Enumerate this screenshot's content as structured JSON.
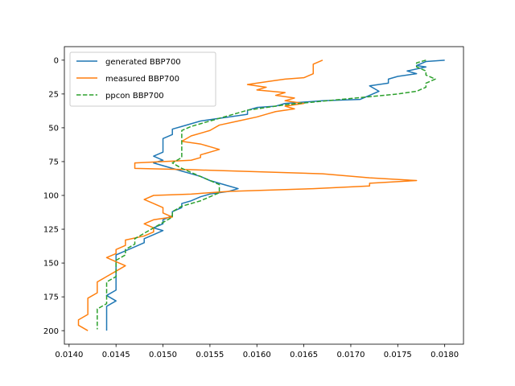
{
  "chart_data": {
    "type": "line",
    "title": "",
    "xlabel": "",
    "ylabel": "",
    "xlim": [
      0.01395,
      0.0182
    ],
    "ylim": [
      210,
      -10
    ],
    "y_inverted": true,
    "grid": false,
    "legend_position": "top-left",
    "x_ticks": [
      {
        "value": 0.014,
        "label": "0.0140"
      },
      {
        "value": 0.0145,
        "label": "0.0145"
      },
      {
        "value": 0.015,
        "label": "0.0150"
      },
      {
        "value": 0.0155,
        "label": "0.0155"
      },
      {
        "value": 0.016,
        "label": "0.0160"
      },
      {
        "value": 0.0165,
        "label": "0.0165"
      },
      {
        "value": 0.017,
        "label": "0.0170"
      },
      {
        "value": 0.0175,
        "label": "0.0175"
      },
      {
        "value": 0.018,
        "label": "0.0180"
      }
    ],
    "y_ticks": [
      {
        "value": 0,
        "label": "0"
      },
      {
        "value": 25,
        "label": "25"
      },
      {
        "value": 50,
        "label": "50"
      },
      {
        "value": 75,
        "label": "75"
      },
      {
        "value": 100,
        "label": "100"
      },
      {
        "value": 125,
        "label": "125"
      },
      {
        "value": 150,
        "label": "150"
      },
      {
        "value": 175,
        "label": "175"
      },
      {
        "value": 200,
        "label": "200"
      }
    ],
    "series": [
      {
        "name": "generated BBP700",
        "color": "#1f77b4",
        "dash": "solid",
        "points": [
          [
            0.018,
            0
          ],
          [
            0.0178,
            1
          ],
          [
            0.0177,
            4
          ],
          [
            0.0178,
            5
          ],
          [
            0.0176,
            8
          ],
          [
            0.0177,
            10
          ],
          [
            0.0175,
            12
          ],
          [
            0.0174,
            14
          ],
          [
            0.0174,
            17
          ],
          [
            0.0172,
            19
          ],
          [
            0.0173,
            23
          ],
          [
            0.0172,
            26
          ],
          [
            0.0171,
            29
          ],
          [
            0.0167,
            30
          ],
          [
            0.0163,
            32
          ],
          [
            0.0162,
            34
          ],
          [
            0.016,
            35
          ],
          [
            0.0159,
            37
          ],
          [
            0.0159,
            40
          ],
          [
            0.0157,
            42
          ],
          [
            0.0156,
            43
          ],
          [
            0.0154,
            45
          ],
          [
            0.0153,
            47
          ],
          [
            0.0152,
            49
          ],
          [
            0.0151,
            51
          ],
          [
            0.0151,
            55
          ],
          [
            0.015,
            58
          ],
          [
            0.015,
            61
          ],
          [
            0.015,
            65
          ],
          [
            0.015,
            68
          ],
          [
            0.0149,
            71
          ],
          [
            0.015,
            74
          ],
          [
            0.0149,
            76
          ],
          [
            0.015,
            78
          ],
          [
            0.0151,
            80
          ],
          [
            0.0152,
            82
          ],
          [
            0.0153,
            84
          ],
          [
            0.0154,
            86
          ],
          [
            0.0155,
            89
          ],
          [
            0.0156,
            91
          ],
          [
            0.0157,
            93
          ],
          [
            0.0158,
            95
          ],
          [
            0.0157,
            97
          ],
          [
            0.0155,
            99
          ],
          [
            0.0154,
            101
          ],
          [
            0.0153,
            104
          ],
          [
            0.0152,
            106
          ],
          [
            0.0152,
            109
          ],
          [
            0.0151,
            112
          ],
          [
            0.0151,
            115
          ],
          [
            0.015,
            118
          ],
          [
            0.015,
            121
          ],
          [
            0.0149,
            124
          ],
          [
            0.015,
            126
          ],
          [
            0.0149,
            129
          ],
          [
            0.0148,
            132
          ],
          [
            0.0148,
            135
          ],
          [
            0.0147,
            138
          ],
          [
            0.0146,
            141
          ],
          [
            0.0145,
            144
          ],
          [
            0.0145,
            147
          ],
          [
            0.0145,
            150
          ],
          [
            0.0145,
            154
          ],
          [
            0.0145,
            158
          ],
          [
            0.0145,
            162
          ],
          [
            0.0145,
            166
          ],
          [
            0.0145,
            170
          ],
          [
            0.0144,
            174
          ],
          [
            0.0145,
            178
          ],
          [
            0.0144,
            182
          ],
          [
            0.0144,
            186
          ],
          [
            0.0144,
            190
          ],
          [
            0.0144,
            194
          ],
          [
            0.0144,
            197
          ],
          [
            0.0144,
            200
          ]
        ]
      },
      {
        "name": "measured BBP700",
        "color": "#ff7f0e",
        "dash": "solid",
        "points": [
          [
            0.0167,
            0
          ],
          [
            0.0166,
            3
          ],
          [
            0.0166,
            6
          ],
          [
            0.0166,
            10
          ],
          [
            0.0165,
            13
          ],
          [
            0.0163,
            14
          ],
          [
            0.0162,
            15
          ],
          [
            0.016,
            17
          ],
          [
            0.0159,
            18
          ],
          [
            0.0161,
            20
          ],
          [
            0.016,
            22
          ],
          [
            0.0163,
            24
          ],
          [
            0.0162,
            26
          ],
          [
            0.0164,
            28
          ],
          [
            0.0163,
            30
          ],
          [
            0.0165,
            32
          ],
          [
            0.0163,
            34
          ],
          [
            0.0164,
            36
          ],
          [
            0.0162,
            38
          ],
          [
            0.0161,
            40
          ],
          [
            0.016,
            42
          ],
          [
            0.0158,
            45
          ],
          [
            0.0156,
            48
          ],
          [
            0.0155,
            52
          ],
          [
            0.0153,
            56
          ],
          [
            0.0152,
            60
          ],
          [
            0.0154,
            62
          ],
          [
            0.0155,
            64
          ],
          [
            0.0156,
            66
          ],
          [
            0.0155,
            68
          ],
          [
            0.0154,
            70
          ],
          [
            0.0154,
            72
          ],
          [
            0.0153,
            74
          ],
          [
            0.0147,
            76
          ],
          [
            0.0147,
            80
          ],
          [
            0.0153,
            81
          ],
          [
            0.0167,
            84
          ],
          [
            0.0172,
            87
          ],
          [
            0.0177,
            89
          ],
          [
            0.0172,
            91
          ],
          [
            0.0172,
            93
          ],
          [
            0.0166,
            95
          ],
          [
            0.0157,
            97
          ],
          [
            0.0153,
            99
          ],
          [
            0.0149,
            100
          ],
          [
            0.0148,
            103
          ],
          [
            0.0149,
            106
          ],
          [
            0.015,
            109
          ],
          [
            0.015,
            113
          ],
          [
            0.0151,
            116
          ],
          [
            0.0149,
            118
          ],
          [
            0.0148,
            121
          ],
          [
            0.0149,
            124
          ],
          [
            0.0149,
            127
          ],
          [
            0.0148,
            130
          ],
          [
            0.0146,
            133
          ],
          [
            0.0146,
            137
          ],
          [
            0.0145,
            140
          ],
          [
            0.0145,
            143
          ],
          [
            0.0144,
            146
          ],
          [
            0.0145,
            149
          ],
          [
            0.0146,
            152
          ],
          [
            0.0145,
            156
          ],
          [
            0.0144,
            160
          ],
          [
            0.0143,
            164
          ],
          [
            0.0143,
            168
          ],
          [
            0.0143,
            172
          ],
          [
            0.0142,
            176
          ],
          [
            0.0142,
            180
          ],
          [
            0.0142,
            184
          ],
          [
            0.0142,
            188
          ],
          [
            0.0141,
            192
          ],
          [
            0.0141,
            196
          ],
          [
            0.0142,
            200
          ]
        ]
      },
      {
        "name": "ppcon BBP700",
        "color": "#2ca02c",
        "dash": "dashed",
        "points": [
          [
            0.0178,
            0
          ],
          [
            0.0177,
            2
          ],
          [
            0.0177,
            5
          ],
          [
            0.0178,
            8
          ],
          [
            0.0178,
            11
          ],
          [
            0.0179,
            14
          ],
          [
            0.0178,
            17
          ],
          [
            0.0178,
            20
          ],
          [
            0.0177,
            23
          ],
          [
            0.0175,
            25
          ],
          [
            0.0172,
            27
          ],
          [
            0.0169,
            29
          ],
          [
            0.0166,
            31
          ],
          [
            0.0163,
            33
          ],
          [
            0.0161,
            35
          ],
          [
            0.0159,
            37
          ],
          [
            0.0158,
            39
          ],
          [
            0.0157,
            41
          ],
          [
            0.0156,
            43
          ],
          [
            0.0155,
            45
          ],
          [
            0.0154,
            47
          ],
          [
            0.0153,
            49
          ],
          [
            0.0152,
            52
          ],
          [
            0.0152,
            56
          ],
          [
            0.0152,
            60
          ],
          [
            0.0152,
            64
          ],
          [
            0.0152,
            68
          ],
          [
            0.0152,
            72
          ],
          [
            0.0151,
            76
          ],
          [
            0.0152,
            80
          ],
          [
            0.0153,
            83
          ],
          [
            0.0154,
            86
          ],
          [
            0.0155,
            89
          ],
          [
            0.0156,
            92
          ],
          [
            0.0156,
            95
          ],
          [
            0.0156,
            98
          ],
          [
            0.0155,
            101
          ],
          [
            0.0154,
            104
          ],
          [
            0.0152,
            108
          ],
          [
            0.0151,
            112
          ],
          [
            0.0151,
            116
          ],
          [
            0.015,
            120
          ],
          [
            0.0149,
            124
          ],
          [
            0.0148,
            128
          ],
          [
            0.0147,
            132
          ],
          [
            0.0147,
            136
          ],
          [
            0.0146,
            140
          ],
          [
            0.0146,
            144
          ],
          [
            0.0145,
            148
          ],
          [
            0.0145,
            152
          ],
          [
            0.0145,
            156
          ],
          [
            0.0145,
            160
          ],
          [
            0.0144,
            164
          ],
          [
            0.0144,
            168
          ],
          [
            0.0144,
            172
          ],
          [
            0.0144,
            176
          ],
          [
            0.0144,
            180
          ],
          [
            0.0143,
            184
          ],
          [
            0.0143,
            188
          ],
          [
            0.0143,
            192
          ],
          [
            0.0143,
            196
          ],
          [
            0.0143,
            199
          ]
        ]
      }
    ]
  }
}
